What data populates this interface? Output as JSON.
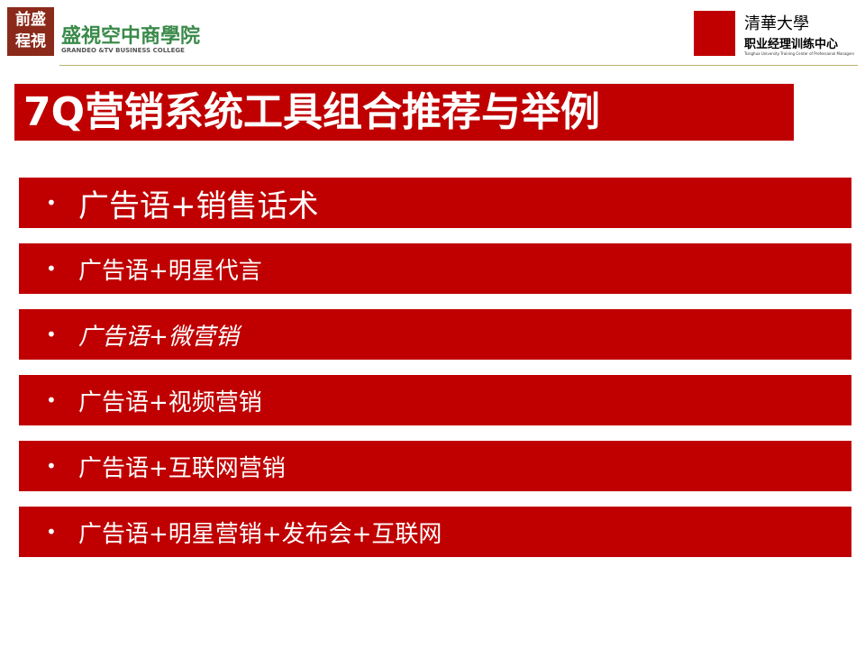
{
  "header": {
    "left_logo_seal": "前盛\n程視",
    "left_logo_text": "盛視空中商學院",
    "left_logo_sub": "GRANDEO &TV BUSINESS COLLEGE",
    "right_logo_title": "清華大學",
    "right_logo_text": "职业经理训练中心",
    "right_logo_sub": "Tsinghua University Training Center of Professional Managers"
  },
  "title": "7Q营销系统工具组合推荐与举例",
  "items": [
    "广告语+销售话术",
    "广告语+明星代言",
    "广告语+微营销",
    "广告语+视频营销",
    "广告语+互联网营销",
    "广告语+明星营销+发布会+互联网"
  ]
}
